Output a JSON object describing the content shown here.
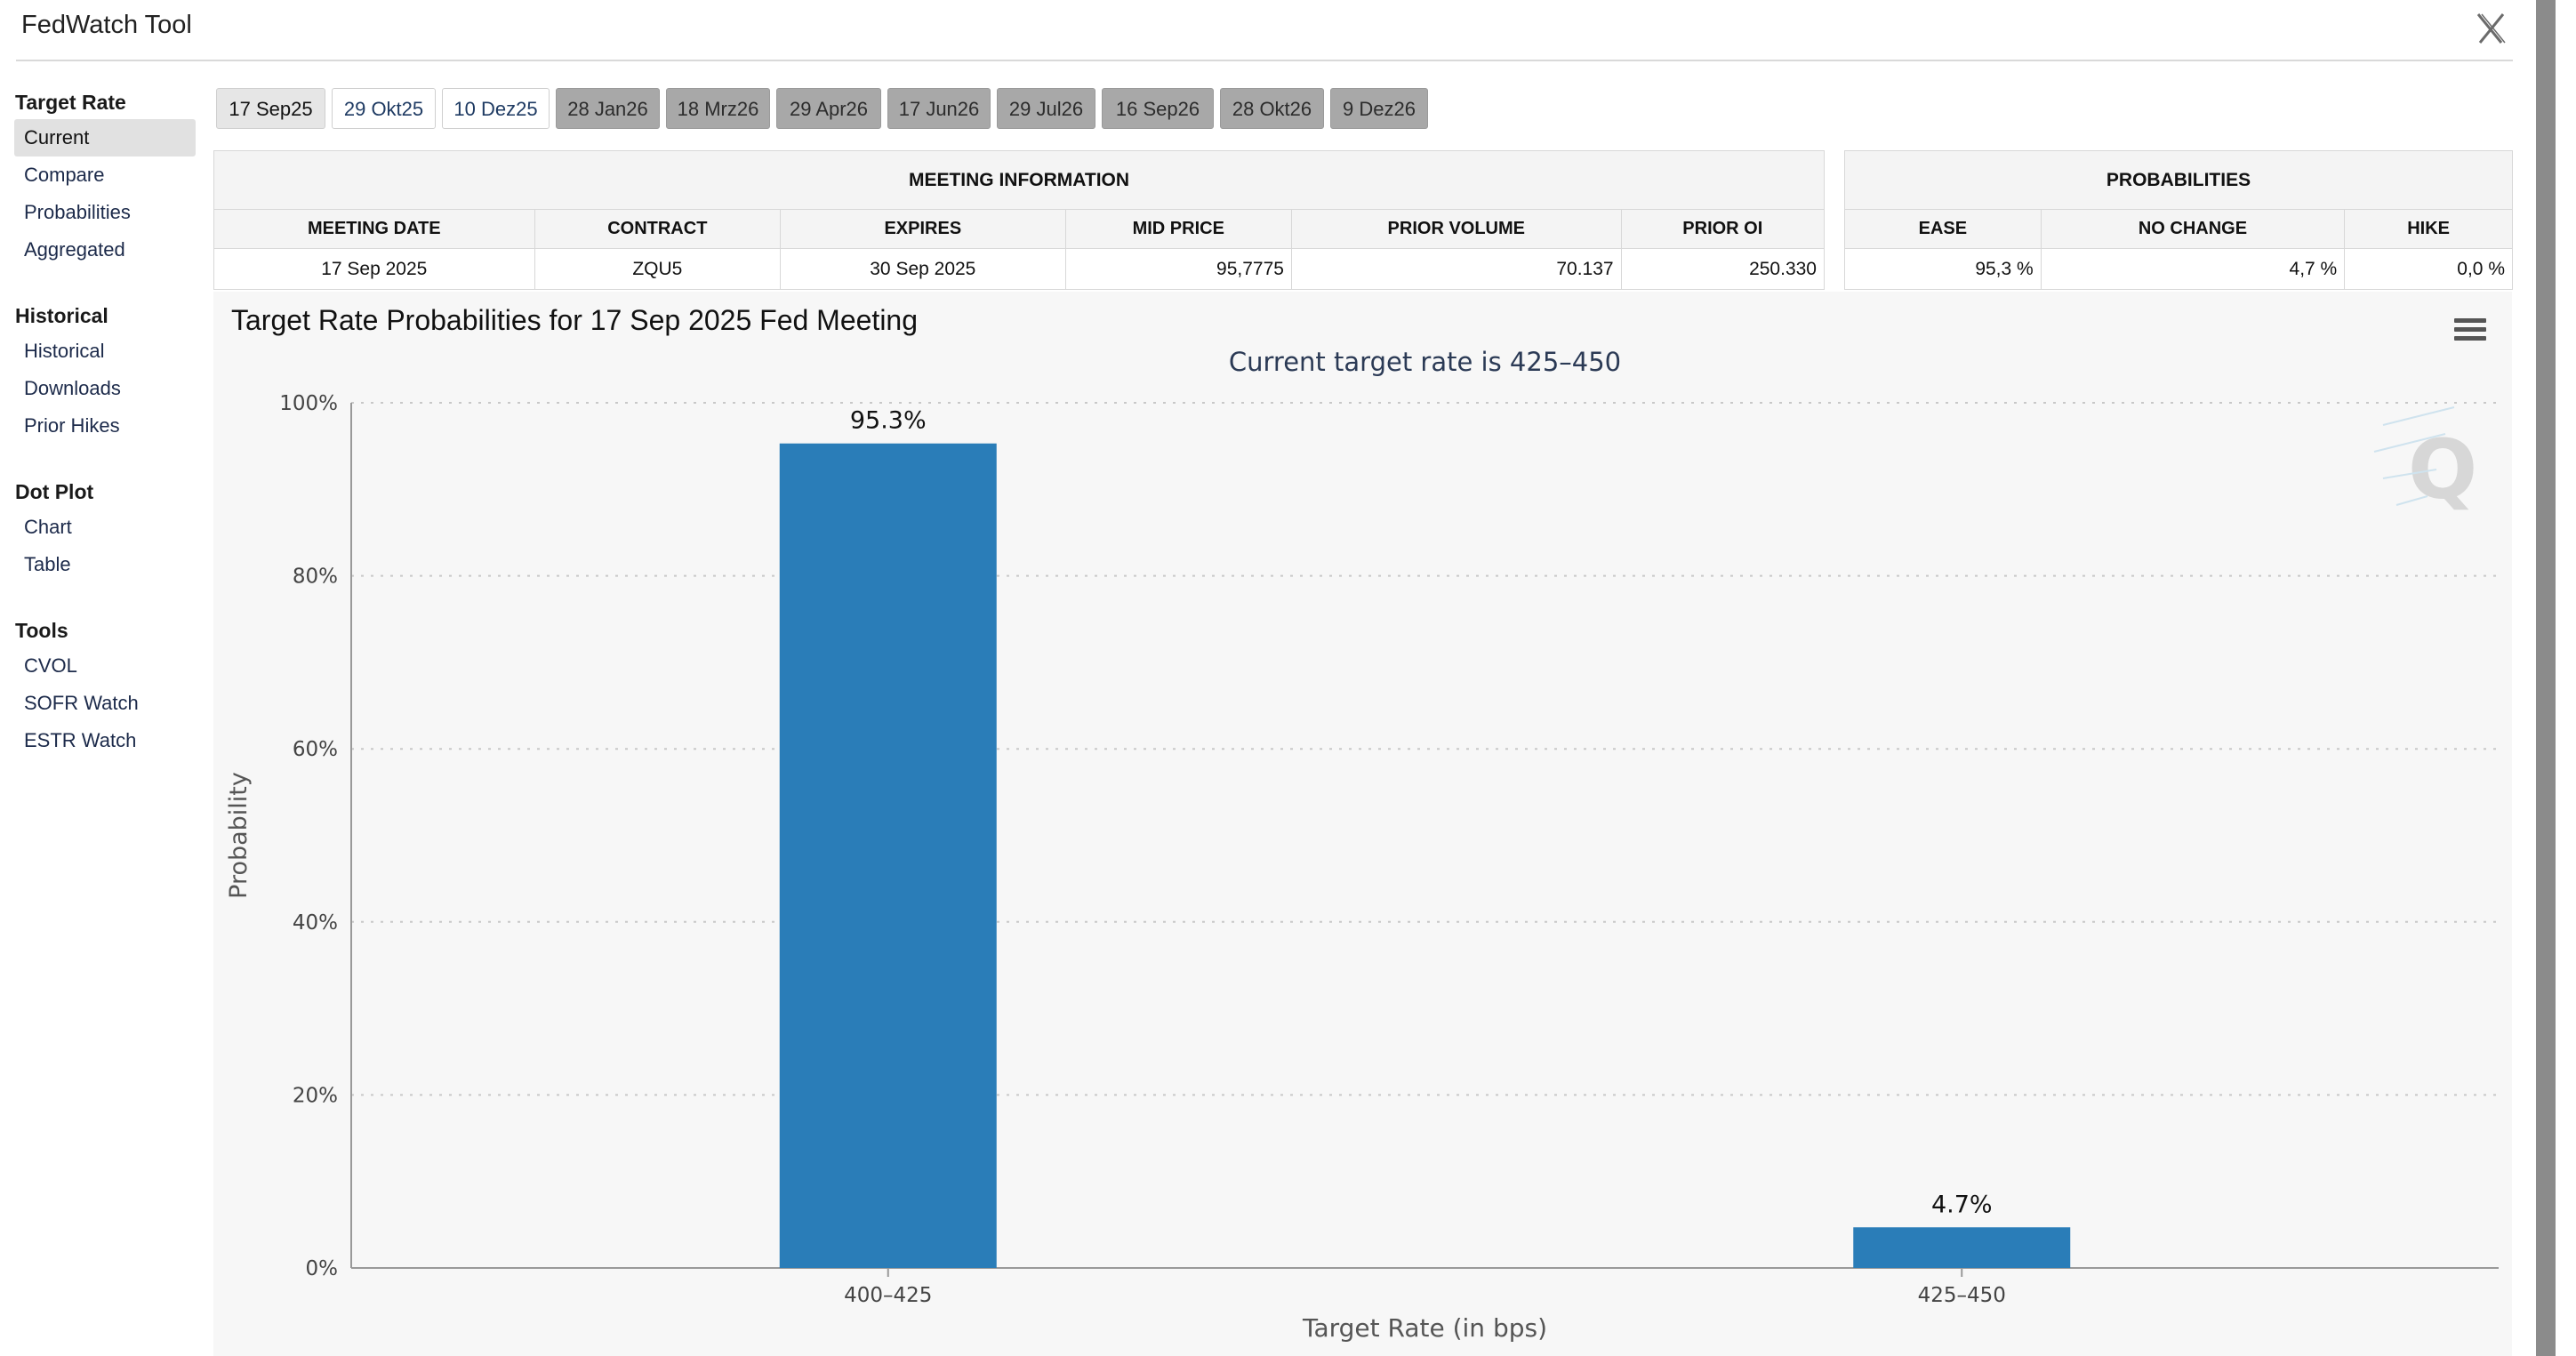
{
  "app": {
    "title": "FedWatch Tool"
  },
  "sidebar": {
    "groups": [
      {
        "heading": "Target Rate",
        "items": [
          {
            "label": "Current",
            "active": true
          },
          {
            "label": "Compare"
          },
          {
            "label": "Probabilities"
          },
          {
            "label": "Aggregated"
          }
        ]
      },
      {
        "heading": "Historical",
        "items": [
          {
            "label": "Historical"
          },
          {
            "label": "Downloads"
          },
          {
            "label": "Prior Hikes"
          }
        ]
      },
      {
        "heading": "Dot Plot",
        "items": [
          {
            "label": "Chart"
          },
          {
            "label": "Table"
          }
        ]
      },
      {
        "heading": "Tools",
        "items": [
          {
            "label": "CVOL"
          },
          {
            "label": "SOFR Watch"
          },
          {
            "label": "ESTR Watch"
          }
        ]
      }
    ]
  },
  "meeting_tabs": [
    {
      "label": "17 Sep25",
      "state": "selected"
    },
    {
      "label": "29 Okt25",
      "state": "near"
    },
    {
      "label": "10 Dez25",
      "state": "near"
    },
    {
      "label": "28 Jan26",
      "state": "far"
    },
    {
      "label": "18 Mrz26",
      "state": "far"
    },
    {
      "label": "29 Apr26",
      "state": "far"
    },
    {
      "label": "17 Jun26",
      "state": "far"
    },
    {
      "label": "29 Jul26",
      "state": "far"
    },
    {
      "label": "16 Sep26",
      "state": "far"
    },
    {
      "label": "28 Okt26",
      "state": "far"
    },
    {
      "label": "9 Dez26",
      "state": "far"
    }
  ],
  "meeting_info": {
    "title": "MEETING INFORMATION",
    "headers": [
      "MEETING DATE",
      "CONTRACT",
      "EXPIRES",
      "MID PRICE",
      "PRIOR VOLUME",
      "PRIOR OI"
    ],
    "row": [
      "17 Sep 2025",
      "ZQU5",
      "30 Sep 2025",
      "95,7775",
      "70.137",
      "250.330"
    ]
  },
  "probabilities": {
    "title": "PROBABILITIES",
    "headers": [
      "EASE",
      "NO CHANGE",
      "HIKE"
    ],
    "row": [
      "95,3 %",
      "4,7 %",
      "0,0 %"
    ]
  },
  "chart_data": {
    "type": "bar",
    "title": "Target Rate Probabilities for 17 Sep 2025 Fed Meeting",
    "subtitle": "Current target rate is 425–450",
    "xlabel": "Target Rate (in bps)",
    "ylabel": "Probability",
    "categories": [
      "400–425",
      "425–450"
    ],
    "values": [
      95.3,
      4.7
    ],
    "data_labels": [
      "95.3%",
      "4.7%"
    ],
    "ylim": [
      0,
      100
    ],
    "yticks": [
      "0%",
      "20%",
      "40%",
      "60%",
      "80%",
      "100%"
    ],
    "ytick_values": [
      0,
      20,
      40,
      60,
      80,
      100
    ],
    "grid": true,
    "bar_color": "#2a7db8"
  }
}
